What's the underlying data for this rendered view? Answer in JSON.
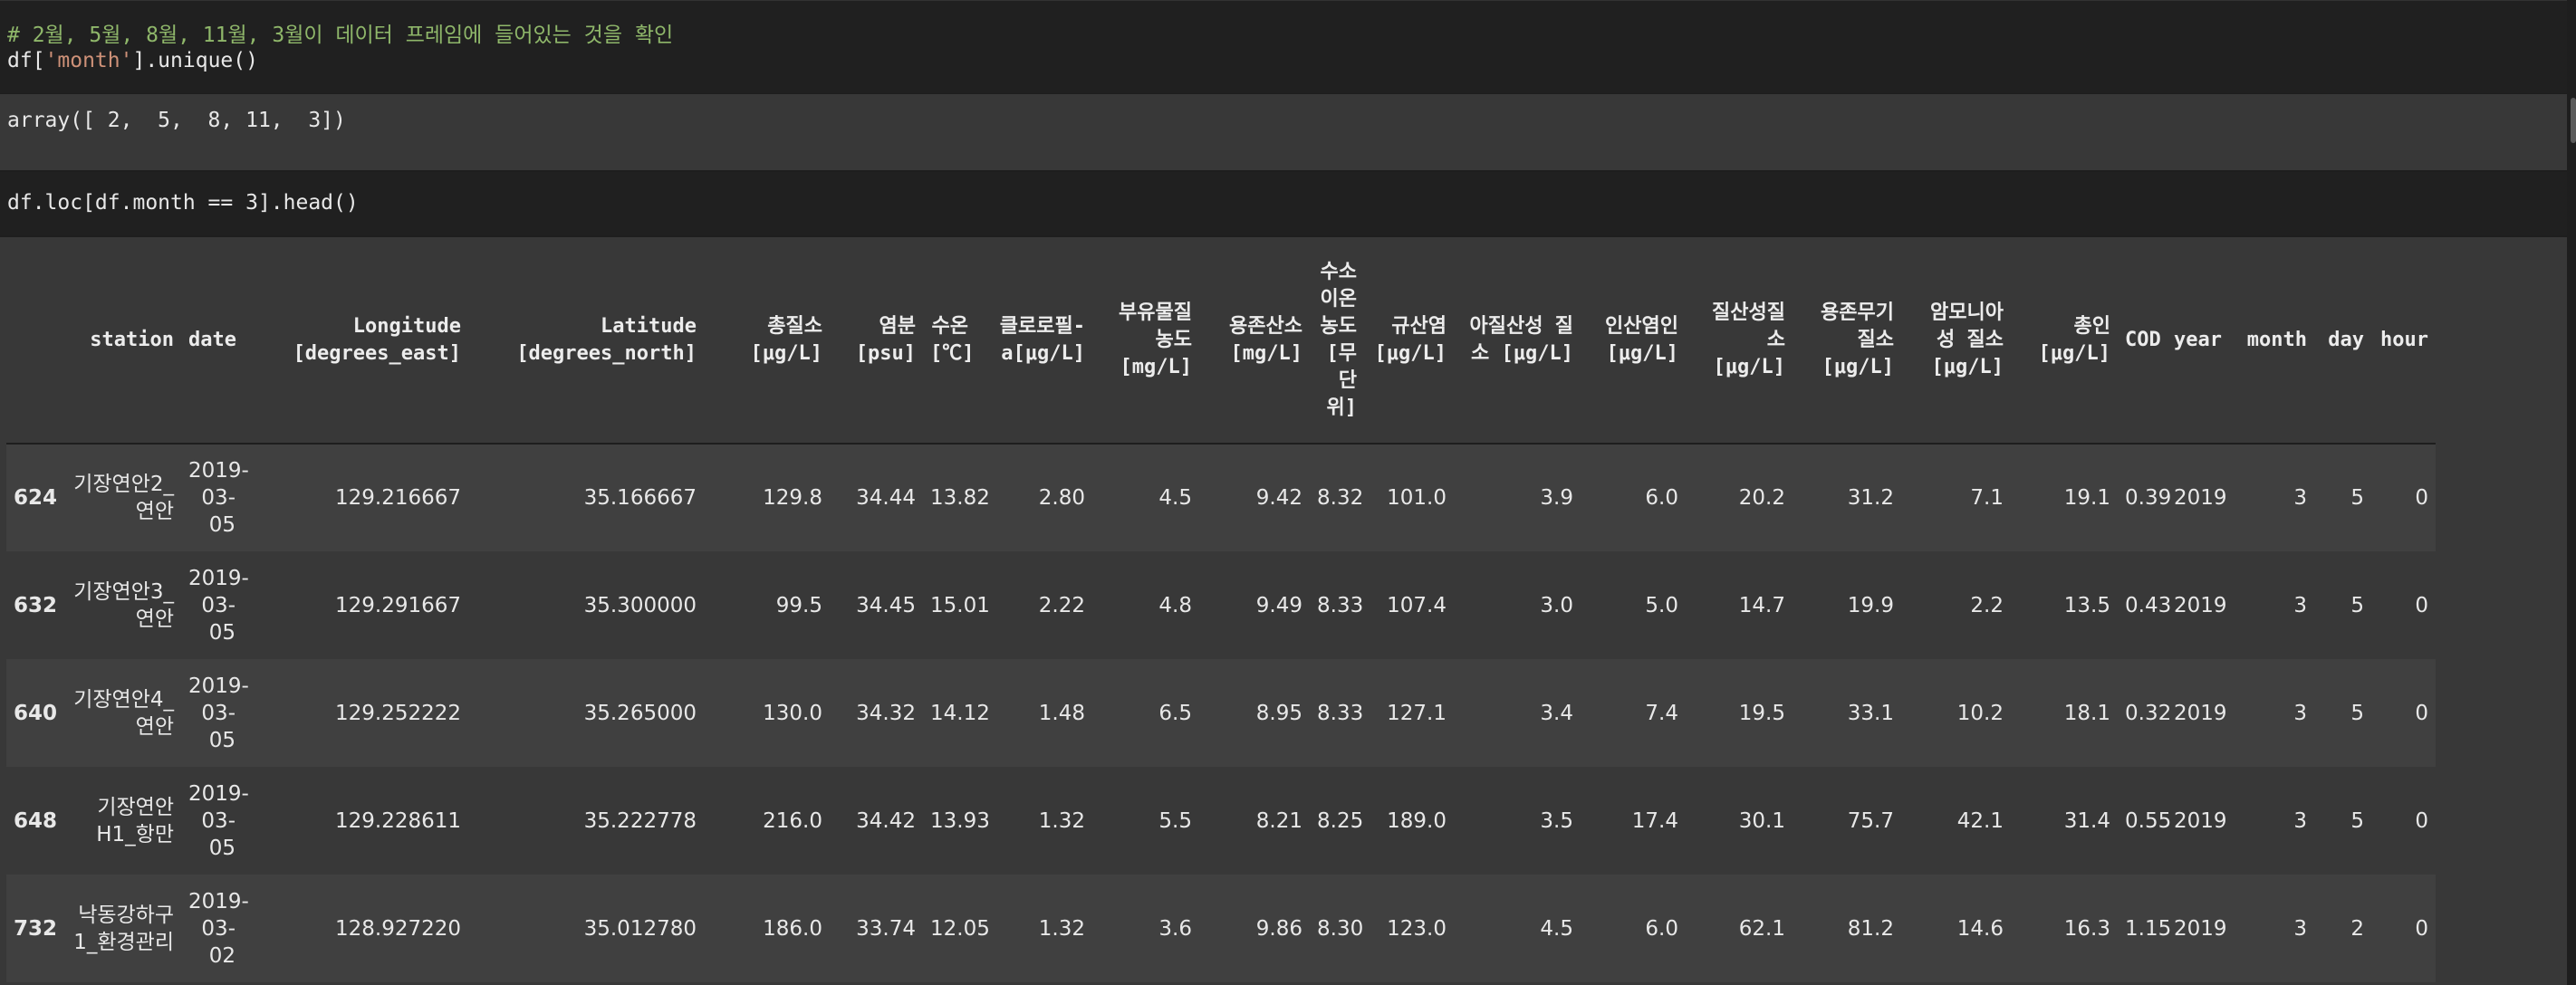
{
  "cells": {
    "cell1_comment": "# 2월, 5월, 8월, 11월, 3월이 데이터 프레임에 들어있는 것을 확인",
    "cell1_code_prefix": "df[",
    "cell1_code_string": "'month'",
    "cell1_code_suffix": "].unique()",
    "cell1_output": "array([ 2,  5,  8, 11,  3])",
    "cell2_code": "df.loc[df.month == 3].head()"
  },
  "table": {
    "columns": [
      "",
      "station",
      "date",
      "Longitude [degrees_east]",
      "Latitude [degrees_north]",
      "총질소 [μg/L]",
      "염분 [psu]",
      "수온 [℃]",
      "클로로필-a[μg/L]",
      "부유물질 농도 [mg/L]",
      "용존산소 [mg/L]",
      "수소 이온 농도 [무 단 위]",
      "규산염 [μg/L]",
      "아질산성 질소 [μg/L]",
      "인산염인 [μg/L]",
      "질산성질 소 [μg/L]",
      "용존무기 질소 [μg/L]",
      "암모니아 성 질소 [μg/L]",
      "총인 [μg/L]",
      "COD",
      "year",
      "month",
      "day",
      "hour"
    ],
    "rows": [
      [
        "624",
        "기장연안2_연안",
        "2019-03-05",
        "129.216667",
        "35.166667",
        "129.8",
        "34.44",
        "13.82",
        "2.80",
        "4.5",
        "9.42",
        "8.32",
        "101.0",
        "3.9",
        "6.0",
        "20.2",
        "31.2",
        "7.1",
        "19.1",
        "0.39",
        "2019",
        "3",
        "5",
        "0"
      ],
      [
        "632",
        "기장연안3_연안",
        "2019-03-05",
        "129.291667",
        "35.300000",
        "99.5",
        "34.45",
        "15.01",
        "2.22",
        "4.8",
        "9.49",
        "8.33",
        "107.4",
        "3.0",
        "5.0",
        "14.7",
        "19.9",
        "2.2",
        "13.5",
        "0.43",
        "2019",
        "3",
        "5",
        "0"
      ],
      [
        "640",
        "기장연안4_연안",
        "2019-03-05",
        "129.252222",
        "35.265000",
        "130.0",
        "34.32",
        "14.12",
        "1.48",
        "6.5",
        "8.95",
        "8.33",
        "127.1",
        "3.4",
        "7.4",
        "19.5",
        "33.1",
        "10.2",
        "18.1",
        "0.32",
        "2019",
        "3",
        "5",
        "0"
      ],
      [
        "648",
        "기장연안 H1_항만",
        "2019-03-05",
        "129.228611",
        "35.222778",
        "216.0",
        "34.42",
        "13.93",
        "1.32",
        "5.5",
        "8.21",
        "8.25",
        "189.0",
        "3.5",
        "17.4",
        "30.1",
        "75.7",
        "42.1",
        "31.4",
        "0.55",
        "2019",
        "3",
        "5",
        "0"
      ],
      [
        "732",
        "낙동강하구 1_환경관리",
        "2019-03-02",
        "128.927220",
        "35.012780",
        "186.0",
        "33.74",
        "12.05",
        "1.32",
        "3.6",
        "9.86",
        "8.30",
        "123.0",
        "4.5",
        "6.0",
        "62.1",
        "81.2",
        "14.6",
        "16.3",
        "1.15",
        "2019",
        "3",
        "2",
        "0"
      ]
    ]
  }
}
